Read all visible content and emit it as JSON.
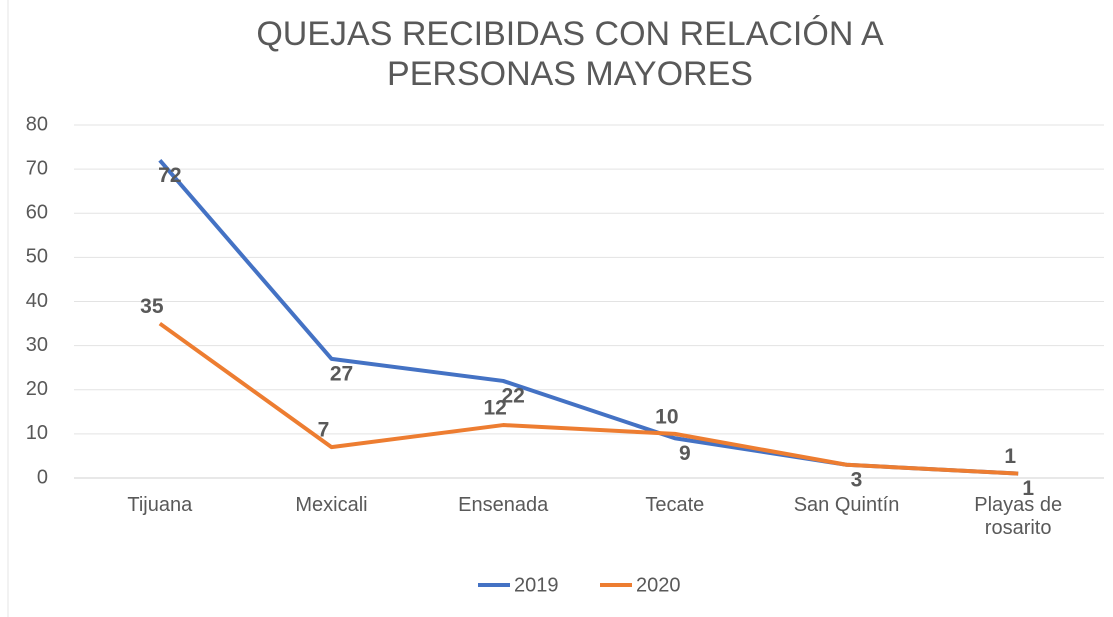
{
  "chart_data": {
    "type": "line",
    "title": "QUEJAS RECIBIDAS CON RELACIÓN A PERSONAS MAYORES",
    "categories": [
      "Tijuana",
      "Mexicali",
      "Ensenada",
      "Tecate",
      "San Quintín",
      "Playas de rosarito"
    ],
    "series": [
      {
        "name": "2019",
        "color": "#4472c4",
        "label_color": "#3a5fa8",
        "values": [
          72,
          27,
          22,
          9,
          3,
          1
        ]
      },
      {
        "name": "2020",
        "color": "#ed7d31",
        "label_color": "#c8641e",
        "values": [
          35,
          7,
          12,
          10,
          3,
          1
        ],
        "value_labels": [
          "35",
          "7",
          "12",
          "10",
          null,
          "1"
        ]
      }
    ],
    "ylim": [
      0,
      80
    ],
    "yticks": [
      0,
      10,
      20,
      30,
      40,
      50,
      60,
      70,
      80
    ],
    "grid": true,
    "legend": "bottom"
  }
}
